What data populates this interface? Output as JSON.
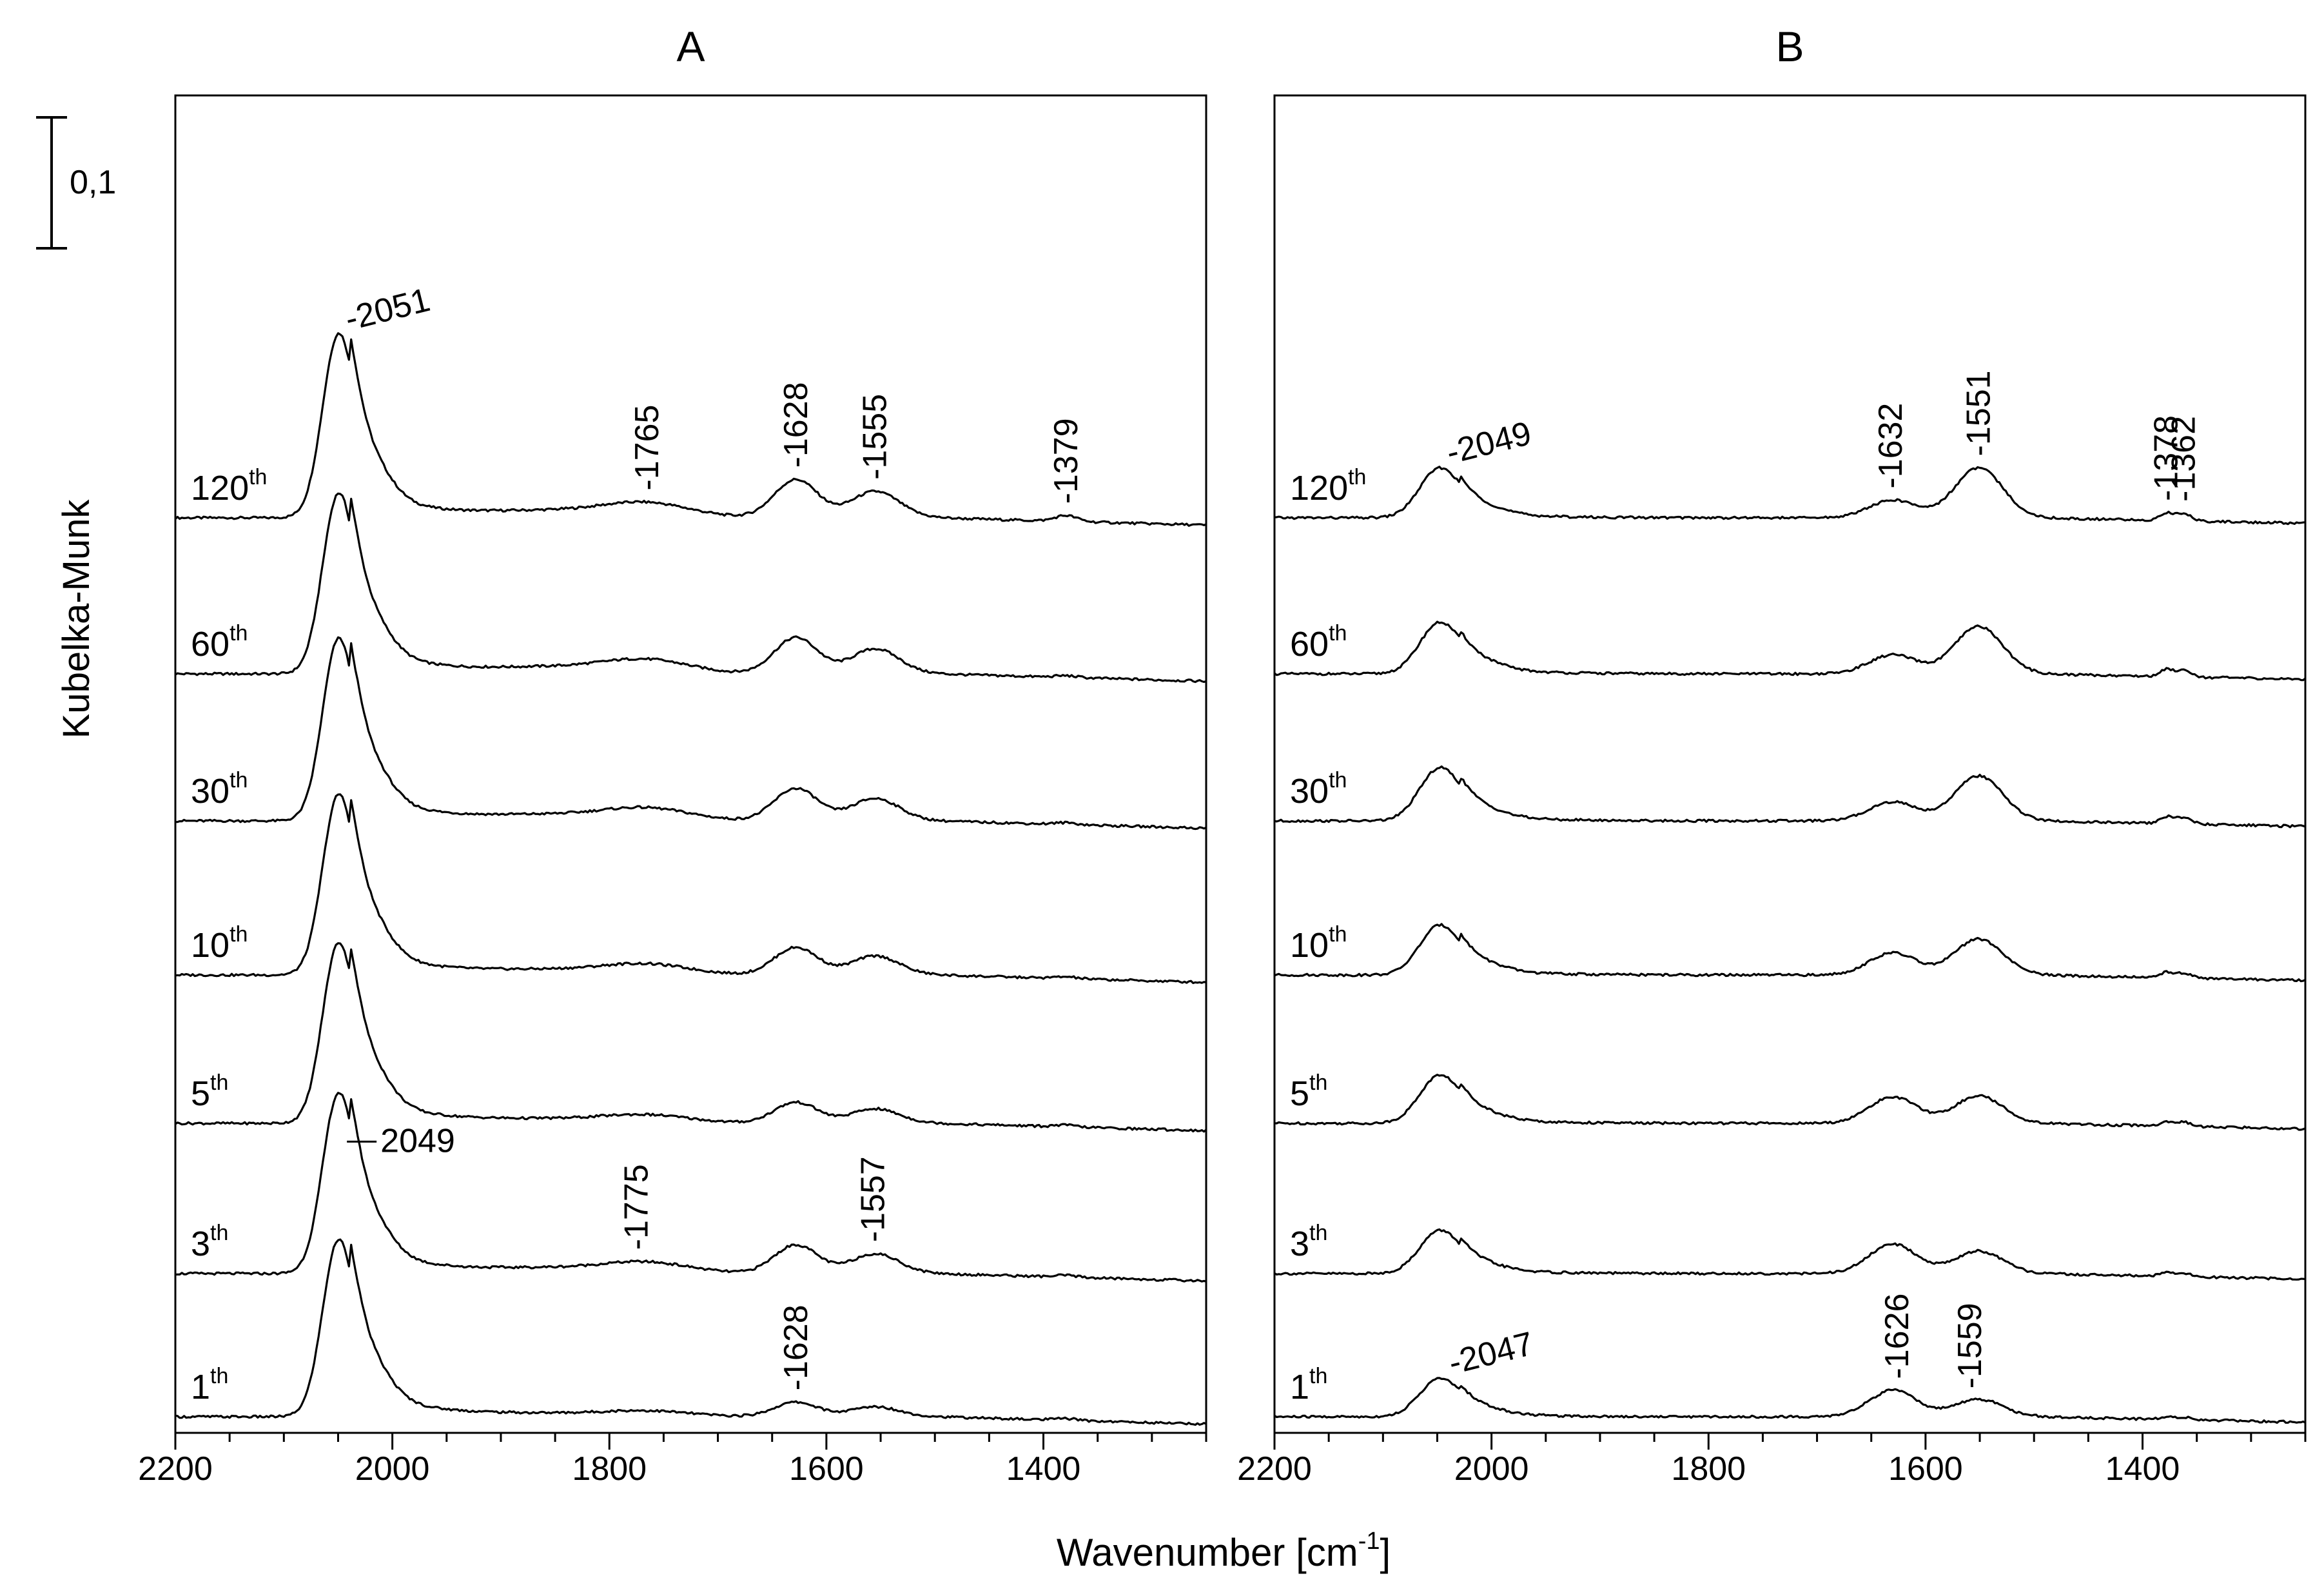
{
  "chart_data": {
    "type": "line",
    "ylabel": "Kubelka-Munk",
    "xlabel": "Wavenumber [cm",
    "xlabel_sup": "-1",
    "xlabel_end": "]",
    "scale_bar_label": "0,1",
    "xlim": [
      2200,
      1250
    ],
    "xticks": [
      "2200",
      "2000",
      "1800",
      "1600",
      "1400"
    ],
    "panels": [
      {
        "title": "A",
        "spectra": [
          {
            "label": "120",
            "suffix": "th"
          },
          {
            "label": "60",
            "suffix": "th"
          },
          {
            "label": "30",
            "suffix": "th"
          },
          {
            "label": "10",
            "suffix": "th"
          },
          {
            "label": "5",
            "suffix": "th"
          },
          {
            "label": "3",
            "suffix": "th"
          },
          {
            "label": "1",
            "suffix": "th"
          }
        ],
        "annotations": [
          {
            "text": "-2051",
            "x": 2051,
            "spectrum": 0
          },
          {
            "text": "-1765",
            "x": 1765,
            "spectrum": 0
          },
          {
            "text": "-1628",
            "x": 1628,
            "spectrum": 0
          },
          {
            "text": "-1555",
            "x": 1555,
            "spectrum": 0
          },
          {
            "text": "-1379",
            "x": 1379,
            "spectrum": 0
          },
          {
            "text": "2049",
            "x": 2049,
            "spectrum": 5
          },
          {
            "text": "-1775",
            "x": 1775,
            "spectrum": 5
          },
          {
            "text": "-1557",
            "x": 1557,
            "spectrum": 5
          },
          {
            "text": "-1628",
            "x": 1628,
            "spectrum": 6
          }
        ]
      },
      {
        "title": "B",
        "spectra": [
          {
            "label": "120",
            "suffix": "th"
          },
          {
            "label": "60",
            "suffix": "th"
          },
          {
            "label": "30",
            "suffix": "th"
          },
          {
            "label": "10",
            "suffix": "th"
          },
          {
            "label": "5",
            "suffix": "th"
          },
          {
            "label": "3",
            "suffix": "th"
          },
          {
            "label": "1",
            "suffix": "th"
          }
        ],
        "annotations": [
          {
            "text": "-2049",
            "x": 2049,
            "spectrum": 0
          },
          {
            "text": "-1632",
            "x": 1632,
            "spectrum": 0
          },
          {
            "text": "-1551",
            "x": 1551,
            "spectrum": 0
          },
          {
            "text": "-1378",
            "x": 1378,
            "spectrum": 0
          },
          {
            "text": "-1362",
            "x": 1362,
            "spectrum": 0
          },
          {
            "text": "-2047",
            "x": 2047,
            "spectrum": 6
          },
          {
            "text": "-1626",
            "x": 1626,
            "spectrum": 6
          },
          {
            "text": "-1559",
            "x": 1559,
            "spectrum": 6
          }
        ]
      }
    ]
  }
}
